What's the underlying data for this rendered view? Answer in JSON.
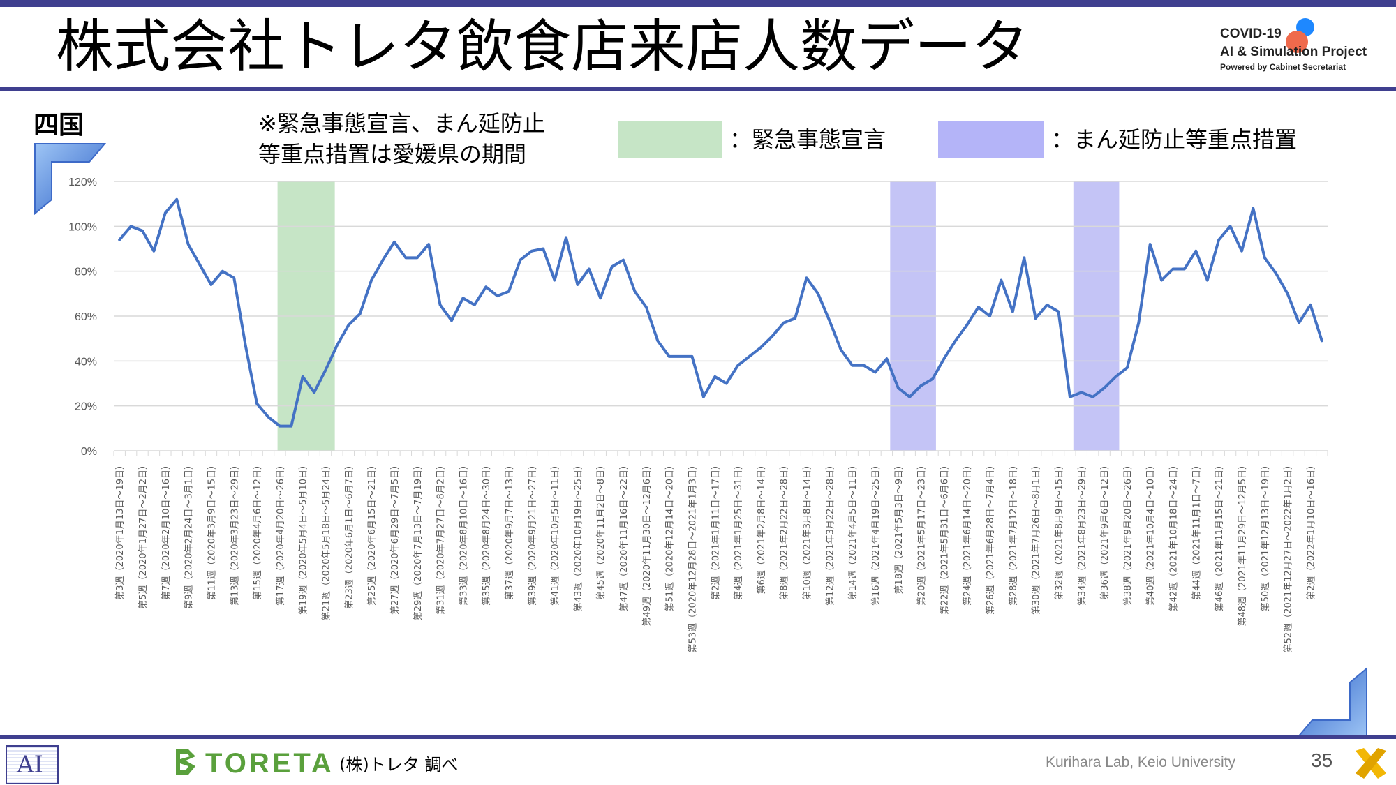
{
  "header": {
    "title": "株式会社トレタ飲食店来店人数データ",
    "project_line1": "COVID-19",
    "project_line2": "AI & Simulation Project",
    "project_line3": "Powered by Cabinet Secretariat"
  },
  "region": "四国",
  "note_line1": "※緊急事態宣言、まん延防止",
  "note_line2": "等重点措置は愛媛県の期間",
  "legend": [
    {
      "label": "：緊急事態宣言",
      "color": "#c6e5c6"
    },
    {
      "label": "：まん延防止等重点措置",
      "color": "#b4b4f8"
    }
  ],
  "footer": {
    "logo_text": "TORETA",
    "source": "(株)トレタ 調べ",
    "lab": "Kurihara Lab, Keio University",
    "page": "35"
  },
  "chart_data": {
    "type": "line",
    "series": [
      {
        "values": [
          94,
          100,
          98,
          89,
          106,
          112,
          92,
          83,
          74,
          80,
          77,
          47,
          21,
          15,
          11,
          11,
          33,
          26,
          36,
          47,
          56,
          61,
          76,
          85,
          93,
          86,
          86,
          92,
          65,
          58,
          68,
          65,
          73,
          69,
          71,
          85,
          89,
          90,
          76,
          95,
          74,
          81,
          68,
          82,
          85,
          71,
          64,
          49,
          42,
          42,
          42,
          24,
          33,
          30,
          38,
          42,
          46,
          51,
          57,
          59,
          77,
          70,
          58,
          45,
          38,
          38,
          35,
          41,
          28,
          24,
          29,
          32,
          41,
          49,
          56,
          64,
          60,
          76,
          62,
          86,
          59,
          65,
          62,
          24,
          26,
          24,
          28,
          33,
          37,
          57,
          92,
          76,
          81,
          81,
          89,
          76,
          94,
          100,
          89,
          108,
          86,
          79,
          70,
          57,
          65,
          49
        ]
      }
    ],
    "x_labels": [
      "第3週（2020年1月13日～19日）",
      "第5週（2020年1月27日～2月2日）",
      "第7週（2020年2月10日～16日）",
      "第9週（2020年2月24日～3月1日）",
      "第11週（2020年3月9日～15日）",
      "第13週（2020年3月23日～29日）",
      "第15週（2020年4月6日～12日）",
      "第17週（2020年4月20日～26日）",
      "第19週（2020年5月4日～5月10日）",
      "第21週（2020年5月18日～5月24日）",
      "第23週（2020年6月1日～6月7日）",
      "第25週（2020年6月15日～21日）",
      "第27週（2020年6月29日～7月5日）",
      "第29週（2020年7月13日～7月19日）",
      "第31週（2020年7月27日～8月2日）",
      "第33週（2020年8月10日～16日）",
      "第35週（2020年8月24日～30日）",
      "第37週（2020年9月7日～13日）",
      "第39週（2020年9月21日～27日）",
      "第41週（2020年10月5日～11日）",
      "第43週（2020年10月19日～25日）",
      "第45週（2020年11月2日～8日）",
      "第47週（2020年11月16日～22日）",
      "第49週（2020年11月30日～12月6日）",
      "第51週（2020年12月14日～20日）",
      "第53週（2020年12月28日～2021年1月3日）",
      "第2週（2021年1月11日～17日）",
      "第4週（2021年1月25日～31日）",
      "第6週（2021年2月8日～14日）",
      "第8週（2021年2月22日～28日）",
      "第10週（2021年3月8日～14日）",
      "第12週（2021年3月22日～28日）",
      "第14週（2021年4月5日～11日）",
      "第16週（2021年4月19日～25日）",
      "第18週（2021年5月3日～9日）",
      "第20週（2021年5月17日～23日）",
      "第22週（2021年5月31日～6月6日）",
      "第24週（2021年6月14日～20日）",
      "第26週（2021年6月28日～7月4日）",
      "第28週（2021年7月12日～18日）",
      "第30週（2021年7月26日～8月1日）",
      "第32週（2021年8月9日～15日）",
      "第34週（2021年8月23日～29日）",
      "第36週（2021年9月6日～12日）",
      "第38週（2021年9月20日～26日）",
      "第40週（2021年10月4日～10日）",
      "第42週（2021年10月18日～24日）",
      "第44週（2021年11月1日～7日）",
      "第46週（2021年11月15日～21日）",
      "第48週（2021年11月29日～12月5日）",
      "第50週（2021年12月13日～19日）",
      "第52週（2021年12月27日～2022年1月2日）",
      "第2週（2022年1月10日～16日）"
    ],
    "ylim": [
      0,
      120
    ],
    "y_ticks": [
      "0%",
      "20%",
      "40%",
      "60%",
      "80%",
      "100%",
      "120%"
    ],
    "shaded": [
      {
        "kind": "緊急事態宣言",
        "from": 13.8,
        "to": 18.8,
        "color": "#c6e5c6"
      },
      {
        "kind": "まん延防止等重点措置",
        "from": 67.3,
        "to": 71.3,
        "color": "#c4c4f6"
      },
      {
        "kind": "まん延防止等重点措置",
        "from": 83.3,
        "to": 87.3,
        "color": "#c4c4f6"
      }
    ],
    "line_color": "#4472c4",
    "grid": true
  }
}
